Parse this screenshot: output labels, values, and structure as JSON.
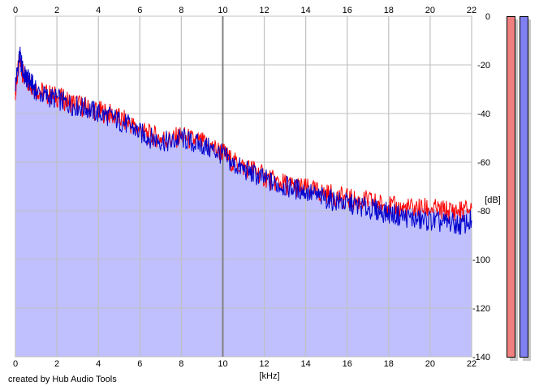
{
  "chart_data": {
    "type": "line",
    "title": "",
    "xlabel": "[kHz]",
    "ylabel": "[dB]",
    "xlim": [
      0,
      22
    ],
    "ylim": [
      -140,
      0
    ],
    "x_ticks": [
      0,
      2,
      4,
      6,
      8,
      10,
      12,
      14,
      16,
      18,
      20,
      22
    ],
    "y_ticks": [
      0,
      -20,
      -40,
      -60,
      -80,
      -100,
      -120,
      -140
    ],
    "grid": true,
    "colors": {
      "fill": "#c0c0ff",
      "left_channel": "#ff0000",
      "right_channel": "#0000cc",
      "grid": "#c0c0c0",
      "major_grid": "#808080"
    },
    "series": [
      {
        "color": "#ff0000",
        "x": [
          0,
          0.2,
          0.4,
          0.6,
          0.8,
          1,
          1.5,
          2,
          2.5,
          3,
          3.5,
          4,
          4.5,
          5,
          5.5,
          6,
          6.5,
          7,
          7.5,
          8,
          8.5,
          9,
          9.5,
          10,
          10.5,
          11,
          11.5,
          12,
          12.5,
          13,
          13.5,
          14,
          14.5,
          15,
          15.5,
          16,
          16.5,
          17,
          17.5,
          18,
          18.5,
          19,
          19.5,
          20,
          20.5,
          21,
          21.5,
          22
        ],
        "values": [
          -30,
          -18,
          -25,
          -27,
          -28,
          -30,
          -32,
          -33,
          -35,
          -36,
          -38,
          -39,
          -40,
          -42,
          -44,
          -47,
          -49,
          -50,
          -51,
          -49,
          -51,
          -52,
          -54,
          -56,
          -60,
          -62,
          -63,
          -66,
          -68,
          -69,
          -70,
          -71,
          -72,
          -73,
          -74,
          -75,
          -76,
          -76,
          -77,
          -78,
          -79,
          -79,
          -79,
          -79,
          -80,
          -80,
          -80,
          -79
        ]
      },
      {
        "color": "#0000cc",
        "x": [
          0,
          0.2,
          0.4,
          0.6,
          0.8,
          1,
          1.5,
          2,
          2.5,
          3,
          3.5,
          4,
          4.5,
          5,
          5.5,
          6,
          6.5,
          7,
          7.5,
          8,
          8.5,
          9,
          9.5,
          10,
          10.5,
          11,
          11.5,
          12,
          12.5,
          13,
          13.5,
          14,
          14.5,
          15,
          15.5,
          16,
          16.5,
          17,
          17.5,
          18,
          18.5,
          19,
          19.5,
          20,
          20.5,
          21,
          21.5,
          22
        ],
        "values": [
          -28,
          -16,
          -24,
          -26,
          -28,
          -31,
          -33,
          -34,
          -36,
          -37,
          -38,
          -40,
          -41,
          -43,
          -45,
          -48,
          -50,
          -51,
          -52,
          -50,
          -52,
          -53,
          -55,
          -57,
          -61,
          -63,
          -65,
          -67,
          -69,
          -70,
          -71,
          -72,
          -74,
          -75,
          -76,
          -77,
          -78,
          -79,
          -80,
          -81,
          -82,
          -83,
          -84,
          -84,
          -85,
          -85,
          -86,
          -84
        ]
      }
    ]
  },
  "credit": "created by Hub Audio Tools",
  "meters": [
    {
      "color": "#f08080"
    },
    {
      "color": "#8080f0"
    }
  ]
}
